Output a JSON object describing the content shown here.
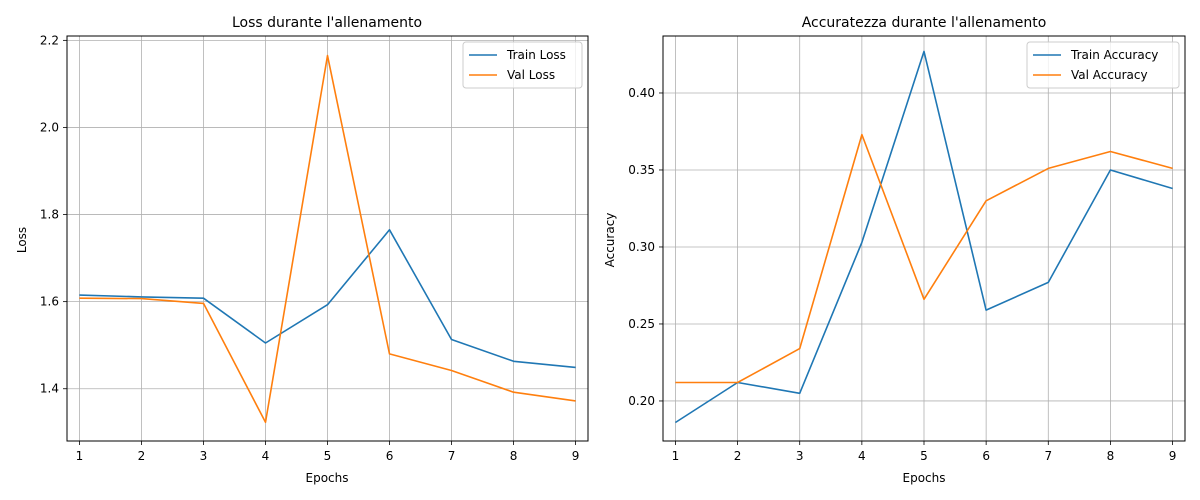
{
  "chart_data": [
    {
      "type": "line",
      "title": "Loss durante l'allenamento",
      "xlabel": "Epochs",
      "ylabel": "Loss",
      "x": [
        1,
        2,
        3,
        4,
        5,
        6,
        7,
        8,
        9
      ],
      "xlim": [
        0.8,
        9.2
      ],
      "ylim": [
        1.28,
        2.21
      ],
      "yticks": [
        1.4,
        1.6,
        1.8,
        2.0,
        2.2
      ],
      "ytick_labels": [
        "1.4",
        "1.6",
        "1.8",
        "2.0",
        "2.2"
      ],
      "grid": true,
      "legend_position": "top-right",
      "series": [
        {
          "name": "Train Loss",
          "color": "#1f77b4",
          "values": [
            1.615,
            1.611,
            1.608,
            1.505,
            1.593,
            1.765,
            1.513,
            1.463,
            1.449
          ]
        },
        {
          "name": "Val Loss",
          "color": "#ff7f0e",
          "values": [
            1.608,
            1.607,
            1.596,
            1.323,
            2.165,
            1.48,
            1.442,
            1.392,
            1.372
          ]
        }
      ]
    },
    {
      "type": "line",
      "title": "Accuratezza durante l'allenamento",
      "xlabel": "Epochs",
      "ylabel": "Accuracy",
      "x": [
        1,
        2,
        3,
        4,
        5,
        6,
        7,
        8,
        9
      ],
      "xlim": [
        0.8,
        9.2
      ],
      "ylim": [
        0.174,
        0.437
      ],
      "yticks": [
        0.2,
        0.25,
        0.3,
        0.35,
        0.4
      ],
      "ytick_labels": [
        "0.20",
        "0.25",
        "0.30",
        "0.35",
        "0.40"
      ],
      "grid": true,
      "legend_position": "top-right",
      "series": [
        {
          "name": "Train Accuracy",
          "color": "#1f77b4",
          "values": [
            0.186,
            0.212,
            0.205,
            0.303,
            0.427,
            0.259,
            0.277,
            0.35,
            0.338
          ]
        },
        {
          "name": "Val Accuracy",
          "color": "#ff7f0e",
          "values": [
            0.212,
            0.212,
            0.234,
            0.373,
            0.266,
            0.33,
            0.351,
            0.362,
            0.351
          ]
        }
      ]
    }
  ]
}
